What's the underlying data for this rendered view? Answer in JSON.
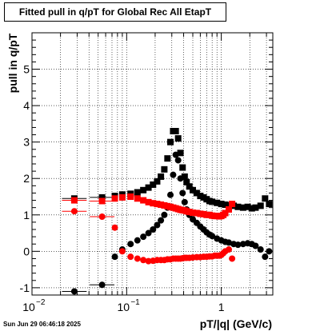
{
  "title": "Fitted pull in q/pT for Global Rec All EtapT",
  "timestamp": "Sun Jun 29 06:46:18 2025",
  "chart_data": {
    "type": "scatter",
    "xlabel": "pT/|q| (GeV/c)",
    "ylabel": "pull in q/pT",
    "xscale": "log",
    "xlim": [
      0.01,
      3.5
    ],
    "ylim": [
      -1.2,
      6.0
    ],
    "grid": true,
    "x_ticks": [
      {
        "value": 0.01,
        "label": "10"
      },
      {
        "value": 0.1,
        "label": "10"
      },
      {
        "value": 1,
        "label": "1"
      }
    ],
    "x_tick_exponents": [
      "−2",
      "−1",
      ""
    ],
    "y_ticks": [
      -1,
      0,
      1,
      2,
      3,
      4,
      5
    ],
    "series": [
      {
        "color": "#000000",
        "marker": "square",
        "x": [
          0.028,
          0.055,
          0.075,
          0.09,
          0.11,
          0.13,
          0.15,
          0.17,
          0.19,
          0.21,
          0.23,
          0.25,
          0.27,
          0.29,
          0.31,
          0.33,
          0.35,
          0.37,
          0.39,
          0.41,
          0.43,
          0.46,
          0.5,
          0.55,
          0.6,
          0.65,
          0.7,
          0.75,
          0.8,
          0.9,
          1.0,
          1.1,
          1.2,
          1.35,
          1.5,
          1.7,
          1.9,
          2.1,
          2.3,
          2.6,
          2.9,
          3.2
        ],
        "y": [
          1.45,
          1.48,
          1.52,
          1.56,
          1.58,
          1.62,
          1.68,
          1.75,
          1.83,
          1.92,
          2.05,
          2.25,
          2.55,
          3.0,
          3.3,
          3.3,
          3.1,
          2.7,
          2.3,
          2.05,
          1.9,
          1.78,
          1.68,
          1.6,
          1.52,
          1.48,
          1.43,
          1.38,
          1.36,
          1.33,
          1.3,
          1.28,
          1.26,
          1.25,
          1.22,
          1.2,
          1.22,
          1.18,
          1.2,
          1.25,
          1.45,
          1.3
        ]
      },
      {
        "color": "#000000",
        "marker": "circle",
        "x": [
          0.028,
          0.055,
          0.075,
          0.09,
          0.11,
          0.13,
          0.15,
          0.17,
          0.19,
          0.21,
          0.23,
          0.25,
          0.27,
          0.29,
          0.31,
          0.33,
          0.35,
          0.37,
          0.39,
          0.41,
          0.43,
          0.46,
          0.5,
          0.55,
          0.6,
          0.65,
          0.7,
          0.75,
          0.8,
          0.9,
          1.0,
          1.1,
          1.2,
          1.35,
          1.5,
          1.7,
          1.9,
          2.1,
          2.3,
          2.6,
          2.9,
          3.2
        ],
        "y": [
          -1.1,
          -0.92,
          -0.15,
          0.05,
          0.2,
          0.3,
          0.4,
          0.5,
          0.6,
          0.72,
          0.85,
          1.0,
          1.2,
          1.55,
          2.1,
          2.65,
          2.5,
          2.0,
          1.6,
          1.35,
          1.15,
          1.0,
          0.88,
          0.78,
          0.68,
          0.6,
          0.52,
          0.46,
          0.42,
          0.35,
          0.3,
          0.26,
          0.24,
          0.2,
          0.18,
          0.2,
          0.22,
          0.2,
          0.15,
          0.05,
          -0.15,
          0.0
        ]
      },
      {
        "color": "#ff0000",
        "marker": "square",
        "x": [
          0.028,
          0.055,
          0.075,
          0.09,
          0.11,
          0.13,
          0.15,
          0.17,
          0.19,
          0.21,
          0.23,
          0.25,
          0.27,
          0.29,
          0.31,
          0.33,
          0.35,
          0.37,
          0.39,
          0.41,
          0.43,
          0.46,
          0.5,
          0.55,
          0.6,
          0.65,
          0.7,
          0.75,
          0.8,
          0.85,
          0.9,
          0.95,
          1.0,
          1.05,
          1.1,
          1.2,
          1.3
        ],
        "y": [
          1.4,
          1.38,
          1.45,
          1.48,
          1.5,
          1.45,
          1.4,
          1.35,
          1.32,
          1.3,
          1.28,
          1.26,
          1.24,
          1.22,
          1.2,
          1.18,
          1.16,
          1.14,
          1.13,
          1.12,
          1.1,
          1.08,
          1.06,
          1.05,
          1.03,
          1.02,
          1.0,
          1.0,
          0.98,
          0.97,
          0.97,
          0.96,
          0.97,
          1.0,
          1.05,
          1.15,
          1.3
        ]
      },
      {
        "color": "#ff0000",
        "marker": "circle",
        "x": [
          0.028,
          0.055,
          0.075,
          0.09,
          0.11,
          0.13,
          0.15,
          0.17,
          0.19,
          0.21,
          0.23,
          0.25,
          0.27,
          0.29,
          0.31,
          0.33,
          0.35,
          0.37,
          0.39,
          0.41,
          0.43,
          0.46,
          0.5,
          0.55,
          0.6,
          0.65,
          0.7,
          0.75,
          0.8,
          0.85,
          0.9,
          0.95,
          1.0,
          1.05,
          1.1,
          1.2,
          1.3
        ],
        "y": [
          1.1,
          0.95,
          0.65,
          0.0,
          -0.15,
          -0.2,
          -0.24,
          -0.27,
          -0.26,
          -0.24,
          -0.24,
          -0.24,
          -0.22,
          -0.22,
          -0.2,
          -0.2,
          -0.2,
          -0.2,
          -0.19,
          -0.18,
          -0.18,
          -0.18,
          -0.17,
          -0.16,
          -0.16,
          -0.15,
          -0.15,
          -0.14,
          -0.14,
          -0.12,
          -0.12,
          -0.12,
          -0.1,
          -0.05,
          0.0,
          0.05,
          -0.2
        ]
      }
    ]
  }
}
